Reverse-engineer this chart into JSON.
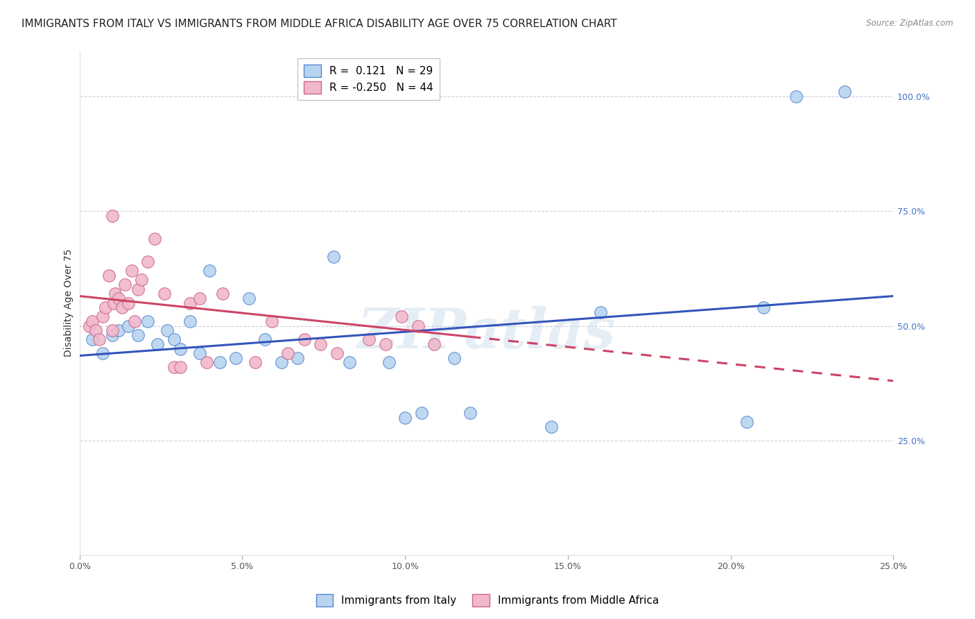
{
  "title": "IMMIGRANTS FROM ITALY VS IMMIGRANTS FROM MIDDLE AFRICA DISABILITY AGE OVER 75 CORRELATION CHART",
  "source": "Source: ZipAtlas.com",
  "ylabel": "Disability Age Over 75",
  "x_tick_labels": [
    "0.0%",
    "5.0%",
    "10.0%",
    "15.0%",
    "20.0%",
    "25.0%"
  ],
  "x_tick_values": [
    0.0,
    5.0,
    10.0,
    15.0,
    20.0,
    25.0
  ],
  "y_tick_labels_right": [
    "100.0%",
    "75.0%",
    "50.0%",
    "25.0%"
  ],
  "y_tick_values_right": [
    100.0,
    75.0,
    50.0,
    25.0
  ],
  "italy_color": "#b8d4f0",
  "italy_edge_color": "#5588cc",
  "africa_color": "#f0b8cc",
  "africa_edge_color": "#cc6688",
  "italy_line_color": "#3355bb",
  "africa_line_color": "#cc4466",
  "watermark": "ZIPatlas",
  "italy_points": [
    [
      0.4,
      47
    ],
    [
      0.7,
      44
    ],
    [
      1.0,
      48
    ],
    [
      1.2,
      49
    ],
    [
      1.5,
      50
    ],
    [
      1.8,
      48
    ],
    [
      2.1,
      51
    ],
    [
      2.4,
      46
    ],
    [
      2.7,
      49
    ],
    [
      2.9,
      47
    ],
    [
      3.1,
      45
    ],
    [
      3.4,
      51
    ],
    [
      3.7,
      44
    ],
    [
      4.0,
      62
    ],
    [
      4.3,
      42
    ],
    [
      4.8,
      43
    ],
    [
      5.2,
      56
    ],
    [
      5.7,
      47
    ],
    [
      6.2,
      42
    ],
    [
      6.7,
      43
    ],
    [
      7.8,
      65
    ],
    [
      8.3,
      42
    ],
    [
      9.5,
      42
    ],
    [
      10.0,
      30
    ],
    [
      10.5,
      31
    ],
    [
      11.5,
      43
    ],
    [
      12.0,
      31
    ],
    [
      14.5,
      28
    ],
    [
      16.0,
      53
    ],
    [
      20.5,
      29
    ],
    [
      21.0,
      54
    ],
    [
      22.0,
      100
    ],
    [
      23.5,
      101
    ]
  ],
  "africa_points": [
    [
      0.3,
      50
    ],
    [
      0.4,
      51
    ],
    [
      0.5,
      49
    ],
    [
      0.6,
      47
    ],
    [
      0.7,
      52
    ],
    [
      0.8,
      54
    ],
    [
      0.9,
      61
    ],
    [
      1.0,
      49
    ],
    [
      1.05,
      55
    ],
    [
      1.1,
      57
    ],
    [
      1.2,
      56
    ],
    [
      1.3,
      54
    ],
    [
      1.4,
      59
    ],
    [
      1.5,
      55
    ],
    [
      1.6,
      62
    ],
    [
      1.7,
      51
    ],
    [
      1.8,
      58
    ],
    [
      1.9,
      60
    ],
    [
      2.1,
      64
    ],
    [
      2.3,
      69
    ],
    [
      2.6,
      57
    ],
    [
      2.9,
      41
    ],
    [
      3.1,
      41
    ],
    [
      3.4,
      55
    ],
    [
      3.7,
      56
    ],
    [
      3.9,
      42
    ],
    [
      4.4,
      57
    ],
    [
      5.4,
      42
    ],
    [
      5.9,
      51
    ],
    [
      6.4,
      44
    ],
    [
      6.9,
      47
    ],
    [
      7.4,
      46
    ],
    [
      7.9,
      44
    ],
    [
      8.9,
      47
    ],
    [
      9.4,
      46
    ],
    [
      9.9,
      52
    ],
    [
      10.4,
      50
    ],
    [
      10.9,
      46
    ],
    [
      1.0,
      74
    ]
  ],
  "italy_line_x0": 0.0,
  "italy_line_y0": 43.5,
  "italy_line_x1": 25.0,
  "italy_line_y1": 56.5,
  "africa_line_x0": 0.0,
  "africa_line_y0": 56.5,
  "africa_line_x1": 25.0,
  "africa_line_y1": 38.0,
  "africa_solid_end": 12.0,
  "xlim": [
    0,
    25
  ],
  "ylim": [
    0,
    110
  ],
  "background_color": "#ffffff",
  "grid_color": "#ccccdd",
  "title_fontsize": 11,
  "axis_label_fontsize": 10,
  "tick_fontsize": 9,
  "legend_fontsize": 11
}
